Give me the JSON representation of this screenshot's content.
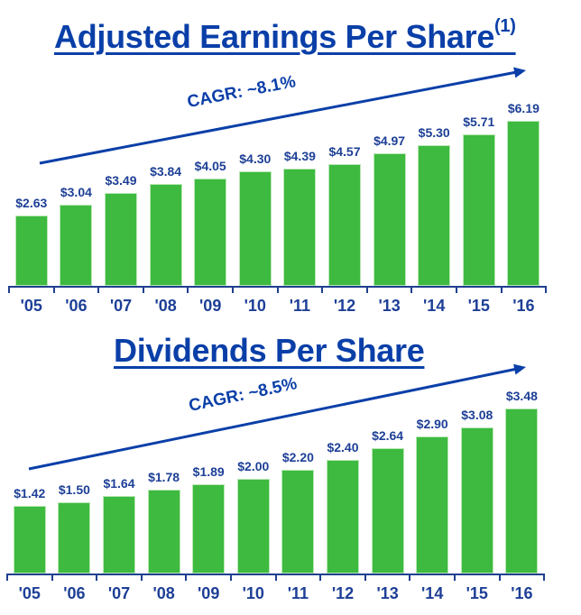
{
  "chart_data": [
    {
      "type": "bar",
      "title": "Adjusted Earnings Per Share",
      "title_superscript": "(1)",
      "annotation": "CAGR: ~8.1%",
      "categories": [
        "'05",
        "'06",
        "'07",
        "'08",
        "'09",
        "'10",
        "'11",
        "'12",
        "'13",
        "'14",
        "'15",
        "'16"
      ],
      "values": [
        2.63,
        3.04,
        3.49,
        3.84,
        4.05,
        4.3,
        4.39,
        4.57,
        4.97,
        5.3,
        5.71,
        6.19
      ],
      "labels": [
        "$2.63",
        "$3.04",
        "$3.49",
        "$3.84",
        "$4.05",
        "$4.30",
        "$4.39",
        "$4.57",
        "$4.97",
        "$5.30",
        "$5.71",
        "$6.19"
      ],
      "xlabel": "",
      "ylabel": "",
      "grid": false,
      "legend": "none",
      "bar_color": "#3dba3f",
      "text_color": "#0a3fa8"
    },
    {
      "type": "bar",
      "title": "Dividends Per Share",
      "annotation": "CAGR: ~8.5%",
      "categories": [
        "'05",
        "'06",
        "'07",
        "'08",
        "'09",
        "'10",
        "'11",
        "'12",
        "'13",
        "'14",
        "'15",
        "'16"
      ],
      "values": [
        1.42,
        1.5,
        1.64,
        1.78,
        1.89,
        2.0,
        2.2,
        2.4,
        2.64,
        2.9,
        3.08,
        3.48
      ],
      "labels": [
        "$1.42",
        "$1.50",
        "$1.64",
        "$1.78",
        "$1.89",
        "$2.00",
        "$2.20",
        "$2.40",
        "$2.64",
        "$2.90",
        "$3.08",
        "$3.48"
      ],
      "xlabel": "",
      "ylabel": "",
      "grid": false,
      "legend": "none",
      "bar_color": "#3dba3f",
      "text_color": "#0a3fa8"
    }
  ]
}
